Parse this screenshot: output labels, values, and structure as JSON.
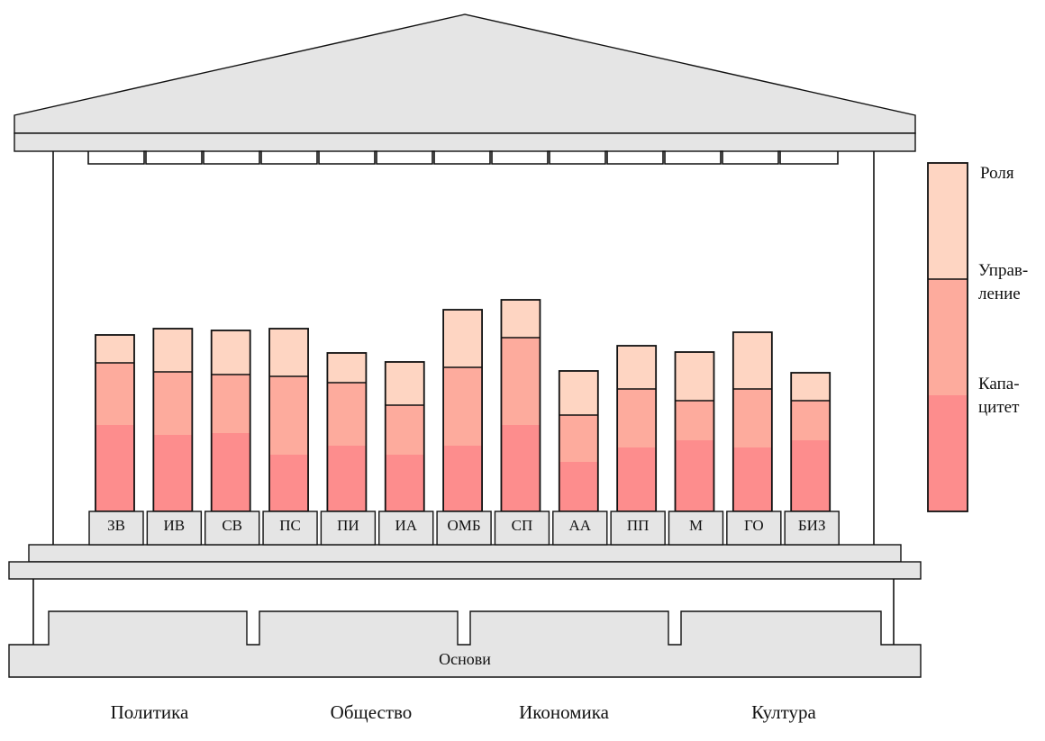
{
  "colors": {
    "layer_capacity": "#fd8d8d",
    "layer_management": "#fdab9d",
    "layer_role": "#fed5c2",
    "structure_fill": "#e5e5e5",
    "stroke": "#111111"
  },
  "pillars": [
    {
      "label": "ЗВ",
      "capacity": 96,
      "management": 69,
      "role": 31
    },
    {
      "label": "ИВ",
      "capacity": 85,
      "management": 70,
      "role": 48
    },
    {
      "label": "СВ",
      "capacity": 87,
      "management": 65,
      "role": 49
    },
    {
      "label": "ПС",
      "capacity": 63,
      "management": 87,
      "role": 53
    },
    {
      "label": "ПИ",
      "capacity": 73,
      "management": 70,
      "role": 33
    },
    {
      "label": "ИА",
      "capacity": 63,
      "management": 55,
      "role": 48
    },
    {
      "label": "ОМБ",
      "capacity": 73,
      "management": 87,
      "role": 64
    },
    {
      "label": "СП",
      "capacity": 96,
      "management": 97,
      "role": 42
    },
    {
      "label": "АА",
      "capacity": 55,
      "management": 52,
      "role": 49
    },
    {
      "label": "ПП",
      "capacity": 71,
      "management": 65,
      "role": 48
    },
    {
      "label": "М",
      "capacity": 79,
      "management": 44,
      "role": 54
    },
    {
      "label": "ГО",
      "capacity": 71,
      "management": 65,
      "role": 63
    },
    {
      "label": "БИЗ",
      "capacity": 79,
      "management": 44,
      "role": 31
    }
  ],
  "legend": {
    "role": [
      "Роля"
    ],
    "management": [
      "Управ-",
      "ление"
    ],
    "capacity": [
      "Капа-",
      "цитет"
    ]
  },
  "foundation": {
    "label": "Основи",
    "columns": [
      "Политика",
      "Общество",
      "Икономика",
      "Култура"
    ]
  }
}
